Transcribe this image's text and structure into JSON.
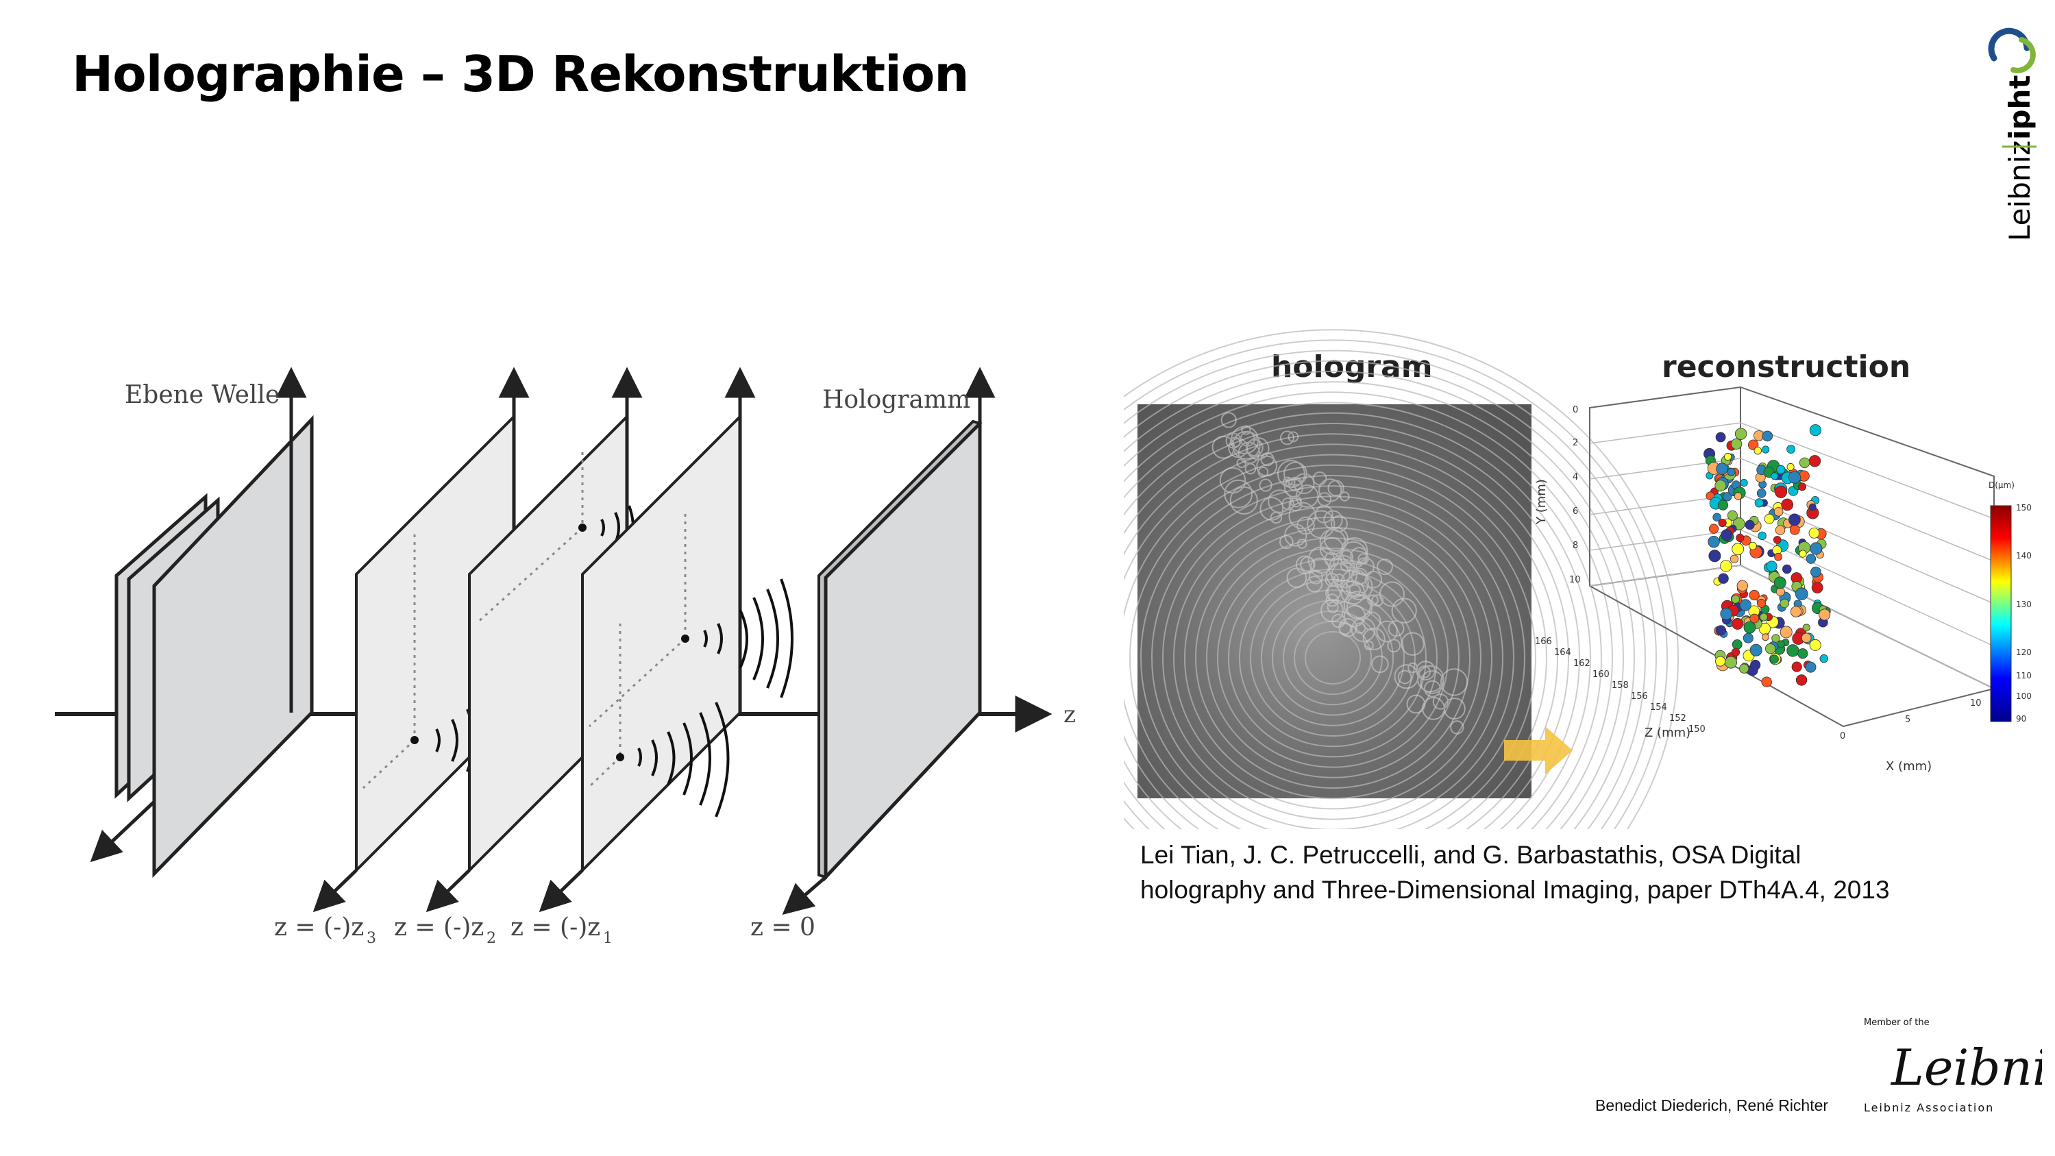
{
  "slide": {
    "title": "Holographie – 3D Rekonstruktion"
  },
  "logo_ipht": {
    "wordmark_left": "Leibniz",
    "wordmark_right": "ipht",
    "colors": {
      "blue": "#1f4e8c",
      "green": "#7fb539",
      "text": "#000000"
    }
  },
  "diagram": {
    "plane_wave_label": "Ebene Welle",
    "hologram_label": "Hologramm",
    "axis_label": "z",
    "positions": [
      {
        "text": "z = (-)z",
        "sub": "3"
      },
      {
        "text": "z = (-)z",
        "sub": "2"
      },
      {
        "text": "z = (-)z",
        "sub": "1"
      },
      {
        "text": "z = 0",
        "sub": ""
      }
    ],
    "colors": {
      "plane_fill": "#d9dadc",
      "plane_light": "#ececec",
      "stroke": "#222222"
    }
  },
  "figure": {
    "hologram_title": "hologram",
    "reconstruction_title": "reconstruction",
    "y_axis_label": "Y (mm)",
    "z_axis_label": "Z (mm)",
    "x_axis_label": "X (mm)",
    "y_ticks": [
      "0",
      "2",
      "4",
      "6",
      "8",
      "10"
    ],
    "z_ticks": [
      "166",
      "164",
      "162",
      "160",
      "158",
      "156",
      "154",
      "152",
      "150"
    ],
    "x_ticks": [
      "0",
      "5",
      "10"
    ],
    "colorbar_label": "D(μm)",
    "colorbar_ticks": [
      "150",
      "140",
      "130",
      "120",
      "110",
      "100",
      "90"
    ],
    "arrow_color": "#f5c242"
  },
  "caption": {
    "text": "Lei Tian, J. C. Petruccelli, and G. Barbastathis, OSA Digital holography and Three-Dimensional Imaging, paper DTh4A.4, 2013"
  },
  "footer": {
    "authors": "Benedict Diederich, René Richter",
    "member_text": "Member of the",
    "leibniz_signature": "Leibniz",
    "leibniz_association": "Leibniz Association"
  }
}
